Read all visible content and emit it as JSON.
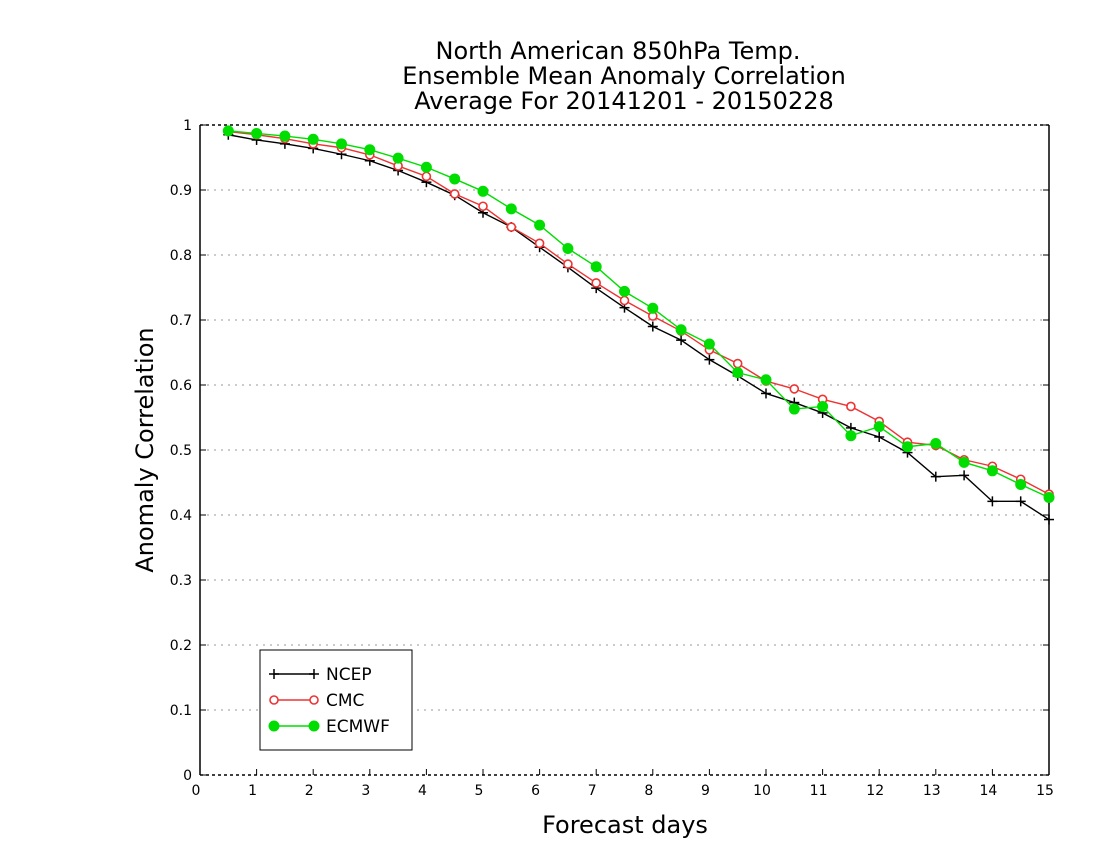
{
  "chart_data": {
    "type": "line",
    "title_lines": [
      "North American 850hPa Temp.",
      "Ensemble Mean Anomaly Correlation",
      "Average For 20141201 - 20150228"
    ],
    "xlabel": "Forecast days",
    "ylabel": "Anomaly Correlation",
    "xlim": [
      0,
      15
    ],
    "ylim": [
      0,
      1
    ],
    "x_ticks": [
      0,
      1,
      2,
      3,
      4,
      5,
      6,
      7,
      8,
      9,
      10,
      11,
      12,
      13,
      14,
      15
    ],
    "x_tick_labels": [
      "0",
      "1",
      "2",
      "3",
      "4",
      "5",
      "6",
      "7",
      "8",
      "9",
      "10",
      "11",
      "12",
      "13",
      "14",
      "15"
    ],
    "y_ticks": [
      0,
      0.1,
      0.2,
      0.3,
      0.4,
      0.5,
      0.6,
      0.7,
      0.8,
      0.9,
      1
    ],
    "y_tick_labels": [
      "0",
      "0.1",
      "0.2",
      "0.3",
      "0.4",
      "0.5",
      "0.6",
      "0.7",
      "0.8",
      "0.9",
      "1"
    ],
    "grid": "horizontal dotted",
    "legend_position": "bottom-left",
    "x": [
      0.5,
      1,
      1.5,
      2,
      2.5,
      3,
      3.5,
      4,
      4.5,
      5,
      5.5,
      6,
      6.5,
      7,
      7.5,
      8,
      8.5,
      9,
      9.5,
      10,
      10.5,
      11,
      11.5,
      12,
      12.5,
      13,
      13.5,
      14,
      14.5,
      15
    ],
    "series": [
      {
        "name": "NCEP",
        "color": "#000000",
        "marker": "plus",
        "values": [
          0.985,
          0.977,
          0.971,
          0.964,
          0.955,
          0.945,
          0.93,
          0.912,
          0.892,
          0.865,
          0.843,
          0.812,
          0.781,
          0.749,
          0.719,
          0.69,
          0.669,
          0.639,
          0.614,
          0.587,
          0.573,
          0.557,
          0.534,
          0.52,
          0.496,
          0.459,
          0.461,
          0.421,
          0.421,
          0.393
        ]
      },
      {
        "name": "CMC",
        "color": "#ee3333",
        "marker": "open-circle",
        "values": [
          0.99,
          0.985,
          0.979,
          0.971,
          0.965,
          0.954,
          0.937,
          0.921,
          0.894,
          0.875,
          0.843,
          0.818,
          0.786,
          0.757,
          0.73,
          0.706,
          0.683,
          0.654,
          0.633,
          0.606,
          0.594,
          0.578,
          0.567,
          0.544,
          0.512,
          0.507,
          0.485,
          0.475,
          0.455,
          0.432
        ]
      },
      {
        "name": "ECMWF",
        "color": "#00dd00",
        "marker": "filled-circle",
        "values": [
          0.991,
          0.987,
          0.983,
          0.978,
          0.971,
          0.962,
          0.949,
          0.935,
          0.917,
          0.898,
          0.871,
          0.846,
          0.81,
          0.782,
          0.744,
          0.718,
          0.685,
          0.663,
          0.619,
          0.608,
          0.563,
          0.567,
          0.522,
          0.536,
          0.505,
          0.51,
          0.481,
          0.468,
          0.447,
          0.427
        ]
      }
    ]
  }
}
